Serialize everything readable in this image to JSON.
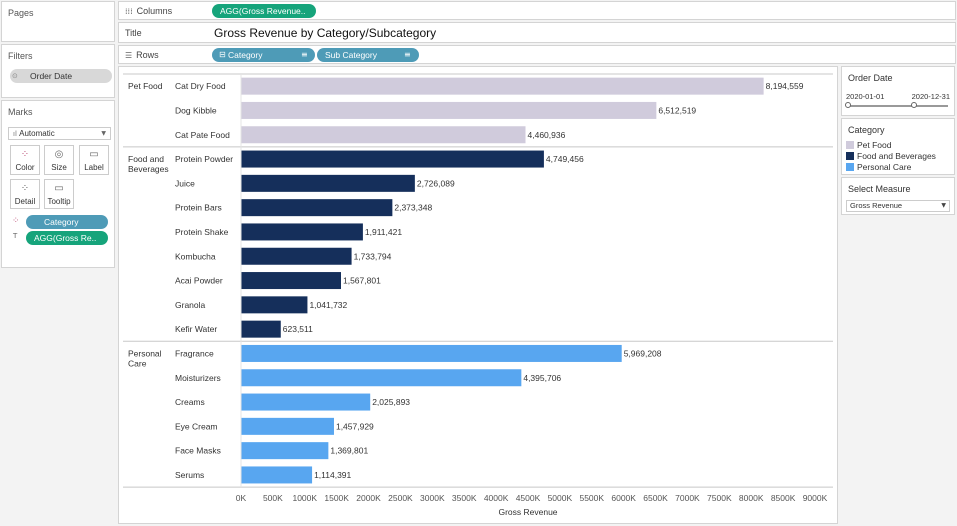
{
  "pages": {
    "title": "Pages"
  },
  "columns": {
    "label": "Columns",
    "pill": "AGG(Gross Revenue.."
  },
  "title_shelf": {
    "label": "Title",
    "value": "Gross Revenue by Category/Subcategory"
  },
  "rows": {
    "label": "Rows",
    "pills": [
      "Category",
      "Sub Category"
    ]
  },
  "filters": {
    "title": "Filters",
    "items": [
      "Order Date"
    ]
  },
  "marks": {
    "title": "Marks",
    "type": "Automatic",
    "buttons": [
      "Color",
      "Size",
      "Label",
      "Detail",
      "Tooltip"
    ],
    "pills": [
      "Category",
      "AGG(Gross Re.."
    ]
  },
  "order_date": {
    "title": "Order Date",
    "start": "2020-01-01",
    "end": "2020-12-31"
  },
  "category_legend": {
    "title": "Category",
    "items": [
      {
        "label": "Pet Food",
        "color": "#d0cbdc"
      },
      {
        "label": "Food and Beverages",
        "color": "#152f5b"
      },
      {
        "label": "Personal Care",
        "color": "#58a6f0"
      }
    ]
  },
  "select_measure": {
    "title": "Select Measure",
    "value": "Gross Revenue"
  },
  "chart_data": {
    "type": "bar",
    "orientation": "horizontal",
    "xlabel": "Gross Revenue",
    "xlim": [
      0,
      9000000
    ],
    "xticks": [
      "0K",
      "500K",
      "1000K",
      "1500K",
      "2000K",
      "2500K",
      "3000K",
      "3500K",
      "4000K",
      "4500K",
      "5000K",
      "5500K",
      "6000K",
      "6500K",
      "7000K",
      "7500K",
      "8000K",
      "8500K",
      "9000K"
    ],
    "groups": [
      {
        "category": "Pet Food",
        "color": "#d0cbdc",
        "items": [
          {
            "name": "Cat Dry Food",
            "value": 8194559,
            "label": "8,194,559"
          },
          {
            "name": "Dog Kibble",
            "value": 6512519,
            "label": "6,512,519"
          },
          {
            "name": "Cat Pate Food",
            "value": 4460936,
            "label": "4,460,936"
          }
        ]
      },
      {
        "category": "Food and Beverages",
        "color": "#152f5b",
        "items": [
          {
            "name": "Protein Powder",
            "value": 4749456,
            "label": "4,749,456"
          },
          {
            "name": "Juice",
            "value": 2726089,
            "label": "2,726,089"
          },
          {
            "name": "Protein Bars",
            "value": 2373348,
            "label": "2,373,348"
          },
          {
            "name": "Protein Shake",
            "value": 1911421,
            "label": "1,911,421"
          },
          {
            "name": "Kombucha",
            "value": 1733794,
            "label": "1,733,794"
          },
          {
            "name": "Acai Powder",
            "value": 1567801,
            "label": "1,567,801"
          },
          {
            "name": "Granola",
            "value": 1041732,
            "label": "1,041,732"
          },
          {
            "name": "Kefir Water",
            "value": 623511,
            "label": "623,511"
          }
        ]
      },
      {
        "category": "Personal Care",
        "color": "#58a6f0",
        "items": [
          {
            "name": "Fragrance",
            "value": 5969208,
            "label": "5,969,208"
          },
          {
            "name": "Moisturizers",
            "value": 4395706,
            "label": "4,395,706"
          },
          {
            "name": "Creams",
            "value": 2025893,
            "label": "2,025,893"
          },
          {
            "name": "Eye Cream",
            "value": 1457929,
            "label": "1,457,929"
          },
          {
            "name": "Face Masks",
            "value": 1369801,
            "label": "1,369,801"
          },
          {
            "name": "Serums",
            "value": 1114391,
            "label": "1,114,391"
          }
        ]
      }
    ]
  }
}
